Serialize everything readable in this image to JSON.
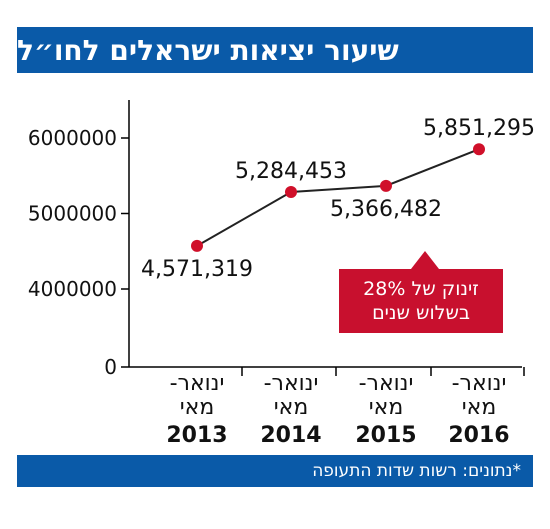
{
  "chart_data": {
    "type": "line",
    "title": "שיעור יציאות ישראלים לחו״ל",
    "categories": [
      {
        "line1": "ינואר-",
        "line2": "מאי",
        "year": "2013"
      },
      {
        "line1": "ינואר-",
        "line2": "מאי",
        "year": "2014"
      },
      {
        "line1": "ינואר-",
        "line2": "מאי",
        "year": "2015"
      },
      {
        "line1": "ינואר-",
        "line2": "מאי",
        "year": "2016"
      }
    ],
    "values": [
      4571319,
      5284453,
      5366482,
      5851295
    ],
    "data_labels": [
      "4,571,319",
      "5,284,453",
      "5,366,482",
      "5,851,295"
    ],
    "y_ticks": [
      {
        "value": 0,
        "label": "0"
      },
      {
        "value": 4000000,
        "label": "4000000"
      },
      {
        "value": 5000000,
        "label": "5000000"
      },
      {
        "value": 6000000,
        "label": "6000000"
      }
    ],
    "grid": false,
    "annotation": {
      "line1": "זינוק של 28%",
      "line2": "בשלוש שנים"
    },
    "source": "*נתונים: רשות שדות התעופה",
    "colors": {
      "header": "#0a5aa8",
      "line": "#222222",
      "marker": "#d0102a",
      "callout": "#c8102e"
    }
  }
}
